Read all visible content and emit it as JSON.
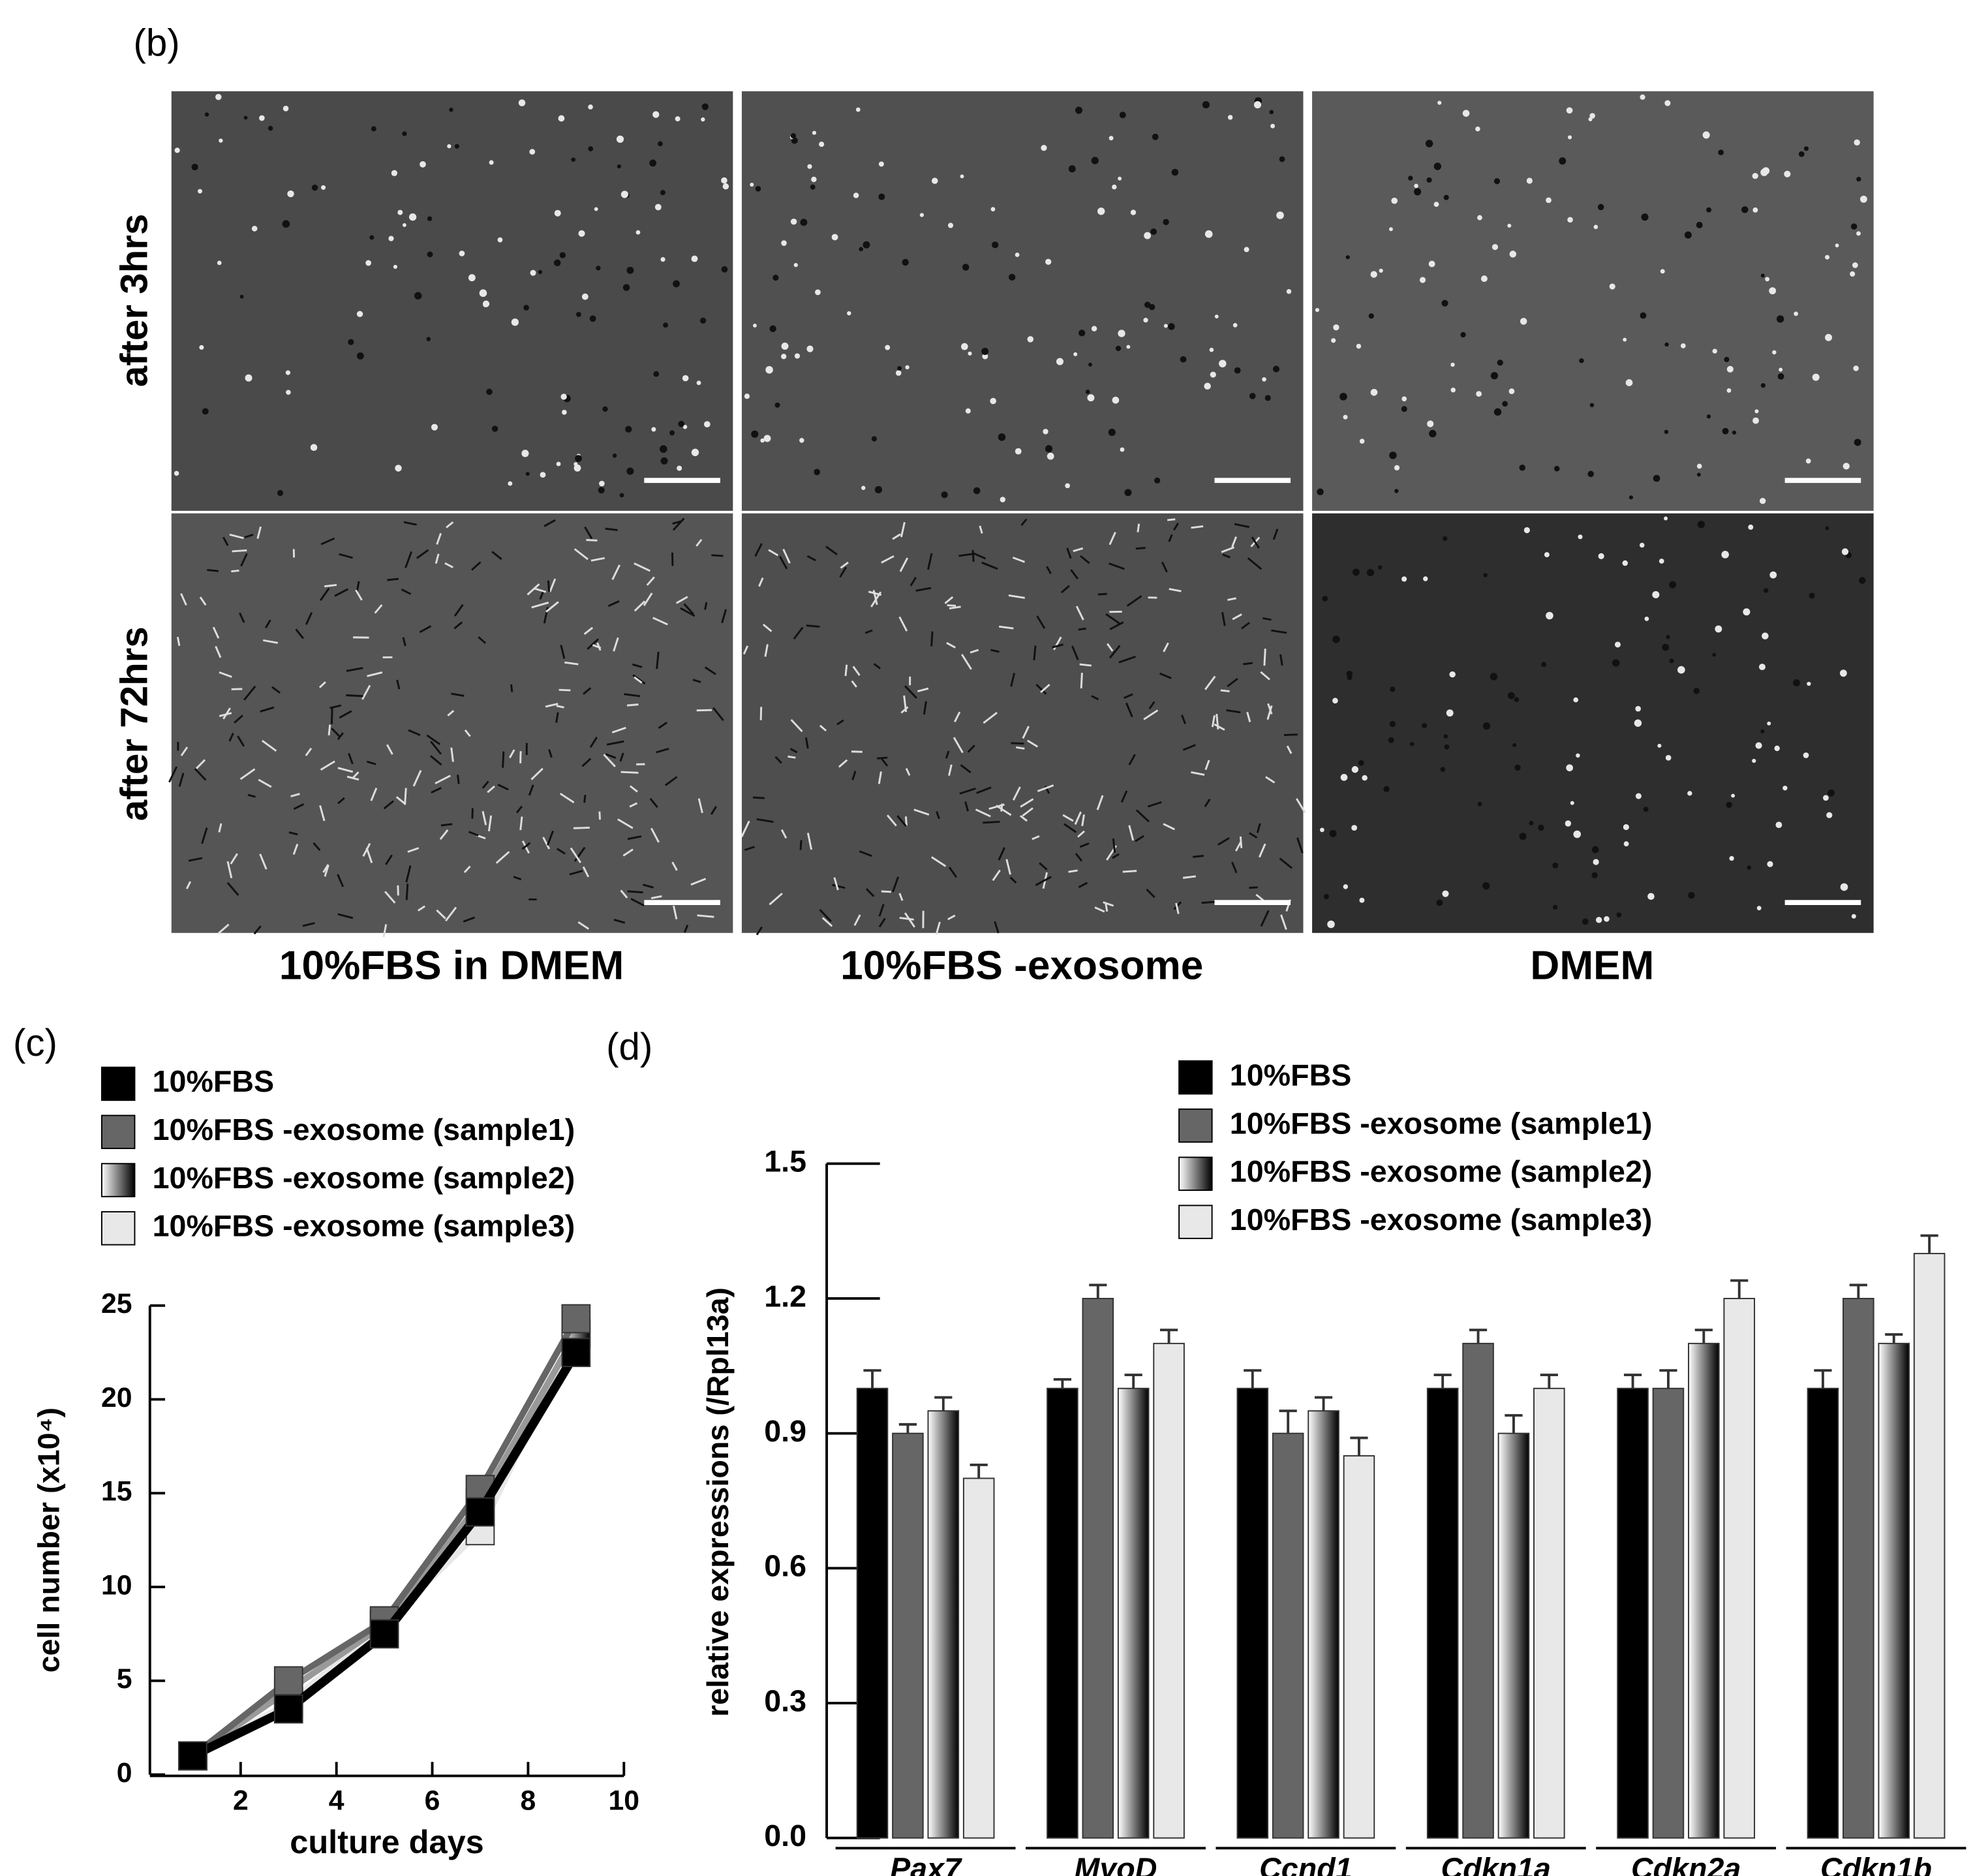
{
  "figure": {
    "panel_labels": [
      "(b)",
      "(c)",
      "(d)"
    ],
    "row_labels": [
      "after 3hrs",
      "after 72hrs"
    ],
    "column_labels": [
      "10%FBS in DMEM",
      "10%FBS -exosome",
      "DMEM"
    ]
  },
  "chart_data": [
    {
      "type": "line",
      "x_label": "culture days",
      "y_label": "cell number (x10⁴)",
      "x": [
        1,
        3,
        5,
        7,
        9
      ],
      "xlim": [
        0,
        10
      ],
      "xticks": [
        2,
        4,
        6,
        8,
        10
      ],
      "ylim": [
        0,
        25
      ],
      "yticks": [
        0,
        5,
        10,
        15,
        20,
        25
      ],
      "legend": "top-left",
      "series": [
        {
          "name": "10%FBS",
          "color": "#000000",
          "values": [
            1,
            3.5,
            7.5,
            14,
            22.5
          ]
        },
        {
          "name": "10%FBS -exosome (sample1)",
          "color": "#666666",
          "values": [
            1,
            5,
            8.2,
            15.2,
            24.3
          ]
        },
        {
          "name": "10%FBS -exosome (sample2)",
          "color": [
            "#ffffff",
            "#000000"
          ],
          "values": [
            1,
            4.5,
            8,
            14.5,
            23.5
          ]
        },
        {
          "name": "10%FBS -exosome (sample3)",
          "color": "#e8e8e8",
          "values": [
            1,
            3.8,
            8,
            13,
            23.5
          ]
        }
      ]
    },
    {
      "type": "bar",
      "y_label": "relative expressions (/Rpl13a)",
      "categories": [
        "Pax7",
        "MyoD",
        "Ccnd1",
        "Cdkn1a",
        "Cdkn2a",
        "Cdkn1b"
      ],
      "ylim": [
        0,
        1.5
      ],
      "yticks": [
        {
          "value": 0,
          "label": "0.0"
        },
        0.3,
        0.6,
        0.9,
        1.2,
        1.5
      ],
      "legend": "top-center",
      "series": [
        {
          "name": "10%FBS",
          "color": "#000000",
          "values": [
            1.0,
            1.0,
            1.0,
            1.0,
            1.0,
            1.0
          ],
          "errors": [
            0.04,
            0.02,
            0.04,
            0.03,
            0.03,
            0.04
          ]
        },
        {
          "name": "10%FBS -exosome (sample1)",
          "color": "#666666",
          "values": [
            0.9,
            1.2,
            0.9,
            1.1,
            1.0,
            1.2
          ],
          "errors": [
            0.02,
            0.03,
            0.05,
            0.03,
            0.04,
            0.03
          ]
        },
        {
          "name": "10%FBS -exosome (sample2)",
          "color": [
            "#ffffff",
            "#000000"
          ],
          "values": [
            0.95,
            1.0,
            0.95,
            0.9,
            1.1,
            1.1
          ],
          "errors": [
            0.03,
            0.03,
            0.03,
            0.04,
            0.03,
            0.02
          ]
        },
        {
          "name": "10%FBS -exosome (sample3)",
          "color": "#e8e8e8",
          "values": [
            0.8,
            1.1,
            0.85,
            1.0,
            1.2,
            1.3
          ],
          "errors": [
            0.03,
            0.03,
            0.04,
            0.03,
            0.04,
            0.04
          ]
        }
      ]
    }
  ]
}
